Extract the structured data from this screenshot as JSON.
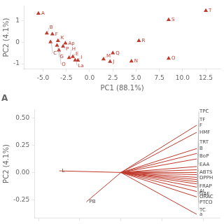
{
  "chart_data": [
    {
      "type": "scatter",
      "title": "A",
      "x_label": "PC1 (88.1%)",
      "y_label": "PC2 (4.1%)",
      "x": [
        -5.5,
        -4.6,
        -4.0,
        -4.2,
        -3.4,
        -3.5,
        -2.85,
        -2.6,
        -3.3,
        -2.2,
        -1.8,
        -1.55,
        -1.25,
        1.5,
        2.2,
        2.5,
        4.5,
        5.3,
        8.5,
        8.5,
        12.5
      ],
      "values": [
        1.35,
        0.42,
        0.38,
        0.02,
        0.07,
        -0.15,
        -0.19,
        -0.04,
        -0.37,
        -0.72,
        -0.67,
        -0.83,
        -0.84,
        -0.78,
        -0.9,
        -0.5,
        -0.88,
        0.07,
        -0.75,
        1.05,
        1.48
      ],
      "labels": [
        "A",
        "B",
        "F",
        "C",
        "K",
        "G",
        "P",
        "Ap",
        "O",
        "H",
        "E",
        "La",
        "I",
        "M",
        "J",
        "Q",
        "N",
        "R",
        "O",
        "S",
        "T"
      ],
      "color": "#c0392b",
      "marker": "triangle",
      "xlim": [
        -7,
        14
      ],
      "xticks": [
        {
          "value": -5,
          "label": "-5.0"
        },
        {
          "value": -2.5,
          "label": "-2.5"
        },
        {
          "value": 0,
          "label": "0.0"
        },
        {
          "value": 2.5,
          "label": "2.5"
        },
        {
          "value": 5,
          "label": "5.0"
        },
        {
          "value": 7.5,
          "label": "7.5"
        },
        {
          "value": 10,
          "label": "10.0"
        },
        {
          "value": 12.5,
          "label": "12.5"
        }
      ],
      "ylim": [
        -1.25,
        1.7
      ],
      "yticks": [
        -1,
        0,
        1
      ],
      "grid": false
    },
    {
      "type": "line",
      "y_label": "PC2 (4.1%)",
      "origin_x": 0,
      "origin_y": 0,
      "x": [
        0.92,
        0.92,
        0.92,
        0.92,
        0.92,
        0.92,
        0.92,
        0.92,
        0.92,
        0.92,
        0.92,
        0.92,
        0.92,
        0.92,
        0.92,
        0.92,
        0.92,
        -0.75,
        -0.42
      ],
      "values": [
        0.435,
        0.37,
        0.22,
        0.175,
        0.125,
        0.055,
        0.025,
        0.0,
        -0.02,
        -0.045,
        -0.065,
        -0.085,
        -0.105,
        -0.135,
        -0.175,
        -0.225,
        -0.385,
        0.015,
        -0.27
      ],
      "labels": [
        "F",
        "HMF",
        "B",
        "BoP",
        "EAA",
        "ABTS",
        "DPPH",
        "FRAP",
        "GAE",
        "PTCO",
        "TC",
        "TRT",
        "TF",
        "TPC",
        "AL",
        "ORAC",
        "a",
        "L",
        "PB"
      ],
      "color": "#c0392b",
      "xlim": [
        -1.05,
        1.2
      ],
      "xticks": [
        -1,
        -0.5,
        0,
        0.5,
        1
      ],
      "ylim": [
        -0.42,
        0.58
      ],
      "yticks": [
        -0.25,
        {
          "value": 0,
          "label": "0.00"
        },
        0.25,
        {
          "value": 0.5,
          "label": "0.50"
        }
      ],
      "tick_labels": "y",
      "grid": false
    }
  ]
}
